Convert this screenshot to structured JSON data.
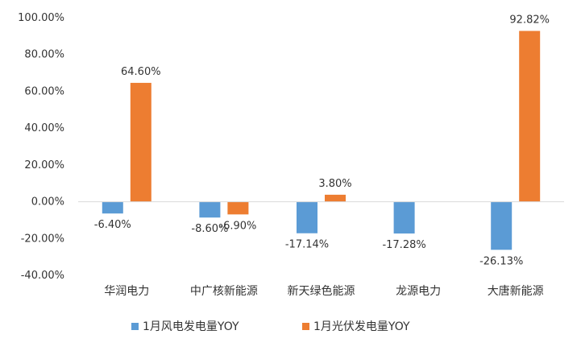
{
  "chart_data": {
    "type": "bar",
    "categories": [
      "华润电力",
      "中广核新能源",
      "新天绿色能源",
      "龙源电力",
      "大唐新能源"
    ],
    "series": [
      {
        "name": "1月风电发电量YOY",
        "values": [
          -6.4,
          -8.6,
          -17.14,
          -17.28,
          -26.13
        ],
        "labels": [
          "-6.40%",
          "-8.60%",
          "-17.14%",
          "-17.28%",
          "-26.13%"
        ],
        "color": "#5B9BD5"
      },
      {
        "name": "1月光伏发电量YOY",
        "values": [
          64.6,
          -6.9,
          3.8,
          null,
          92.82
        ],
        "labels": [
          "64.60%",
          "-6.90%",
          "3.80%",
          "",
          "92.82%"
        ],
        "color": "#ED7D31"
      }
    ],
    "ylim": [
      -40,
      100
    ],
    "yticks": [
      100,
      80,
      60,
      40,
      20,
      0,
      -20,
      -40
    ],
    "ytick_labels": [
      "100.00%",
      "80.00%",
      "60.00%",
      "40.00%",
      "20.00%",
      "0.00%",
      "-20.00%",
      "-40.00%"
    ],
    "legend": "bottom",
    "grid": false
  }
}
